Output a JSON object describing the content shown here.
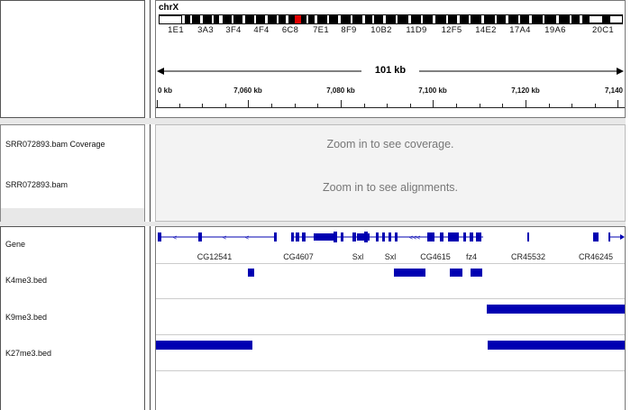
{
  "header": {
    "chromosome": "chrX",
    "cytobands": [
      "1E1",
      "3A3",
      "3F4",
      "4F4",
      "6C8",
      "7E1",
      "8F9",
      "10B2",
      "11D9",
      "12F5",
      "14E2",
      "17A4",
      "19A6",
      "20C1"
    ],
    "span_label": "101 kb",
    "ruler_ticks": [
      "0 kb",
      "7,060 kb",
      "7,080 kb",
      "7,100 kb",
      "7,120 kb",
      "7,140"
    ]
  },
  "data_panel": {
    "tracks": [
      "SRR072893.bam Coverage",
      "SRR072893.bam"
    ],
    "coverage_message": "Zoom in to see coverage.",
    "alignment_message": "Zoom in to see alignments."
  },
  "feature_panel": {
    "tracks": [
      "Gene",
      "K4me3.bed",
      "K9me3.bed",
      "K27me3.bed"
    ],
    "gene_labels": [
      "CG12541",
      "CG4607",
      "Sxl",
      "Sxl",
      "CG4615",
      "fz4",
      "CR45532",
      "CR46245"
    ]
  },
  "colors": {
    "feature": "#0000b2",
    "region_marker": "#e00000",
    "message": "#777777"
  }
}
